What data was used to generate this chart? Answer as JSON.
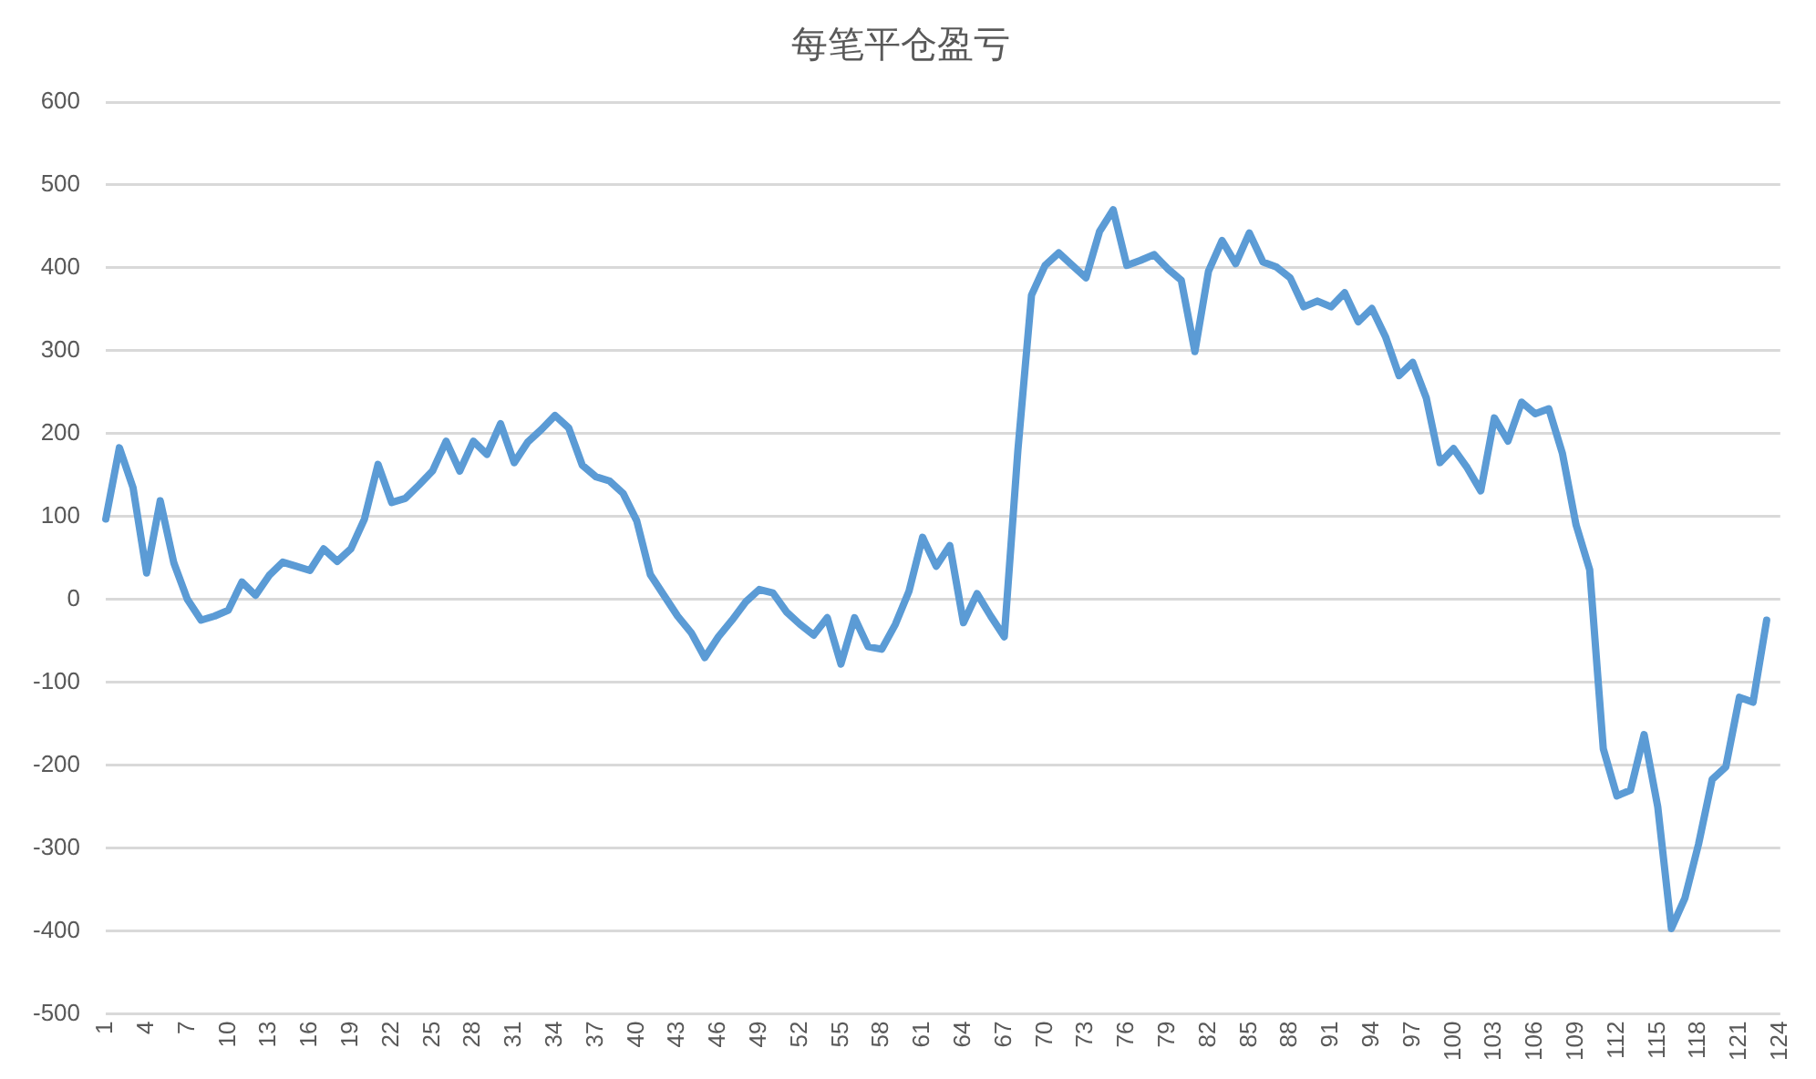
{
  "chart_data": {
    "type": "line",
    "title": "每笔平仓盈亏",
    "categories": [
      "1",
      null,
      null,
      "4",
      null,
      null,
      "7",
      null,
      null,
      "10",
      null,
      null,
      "13",
      null,
      null,
      "16",
      null,
      null,
      "19",
      null,
      null,
      "22",
      null,
      null,
      "25",
      null,
      null,
      "28",
      null,
      null,
      "31",
      null,
      null,
      "34",
      null,
      null,
      "37",
      null,
      null,
      "40",
      null,
      null,
      "43",
      null,
      null,
      "46",
      null,
      null,
      "49",
      null,
      null,
      "52",
      null,
      null,
      "55",
      null,
      null,
      "58",
      null,
      null,
      "61",
      null,
      null,
      "64",
      null,
      null,
      "67",
      null,
      null,
      "70",
      null,
      null,
      "73",
      null,
      null,
      "76",
      null,
      null,
      "79",
      null,
      null,
      "82",
      null,
      null,
      "85",
      null,
      null,
      "88",
      null,
      null,
      "91",
      null,
      null,
      "94",
      null,
      null,
      "97",
      null,
      null,
      "100",
      null,
      null,
      "103",
      null,
      null,
      "106",
      null,
      null,
      "109",
      null,
      null,
      "112",
      null,
      null,
      "115",
      null,
      null,
      "118",
      null,
      null,
      "121",
      null,
      null,
      "124"
    ],
    "series": [
      {
        "color": "#5b9bd5",
        "values": [
          97,
          183,
          135,
          32,
          119,
          44,
          0,
          -25,
          -20,
          -13,
          21,
          5,
          29,
          45,
          40,
          35,
          61,
          46,
          61,
          97,
          163,
          117,
          122,
          138,
          155,
          191,
          155,
          191,
          175,
          212,
          165,
          190,
          205,
          222,
          207,
          162,
          148,
          143,
          128,
          95,
          30,
          5,
          -20,
          -40,
          -70,
          -45,
          -25,
          -3,
          12,
          8,
          -15,
          -30,
          -43,
          -22,
          -78,
          -22,
          -57,
          -60,
          -30,
          10,
          75,
          40,
          65,
          -28,
          7,
          -20,
          -45,
          180,
          367,
          403,
          418,
          403,
          388,
          444,
          470,
          403,
          409,
          416,
          399,
          385,
          299,
          396,
          433,
          405,
          442,
          407,
          401,
          388,
          353,
          360,
          353,
          370,
          335,
          351,
          317,
          270,
          286,
          243,
          165,
          182,
          159,
          131,
          219,
          191,
          238,
          224,
          230,
          176,
          90,
          36,
          -180,
          -237,
          -230,
          -163,
          -250,
          -397,
          -360,
          -295,
          -217,
          -202,
          -118,
          -124,
          -25,
          null
        ]
      }
    ],
    "ylim": [
      -500,
      600
    ],
    "yticks": [
      -500,
      -400,
      -300,
      -200,
      -100,
      0,
      100,
      200,
      300,
      400,
      500,
      600
    ],
    "grid": "y",
    "legend": false,
    "marker": "none",
    "line_style": "solid"
  }
}
